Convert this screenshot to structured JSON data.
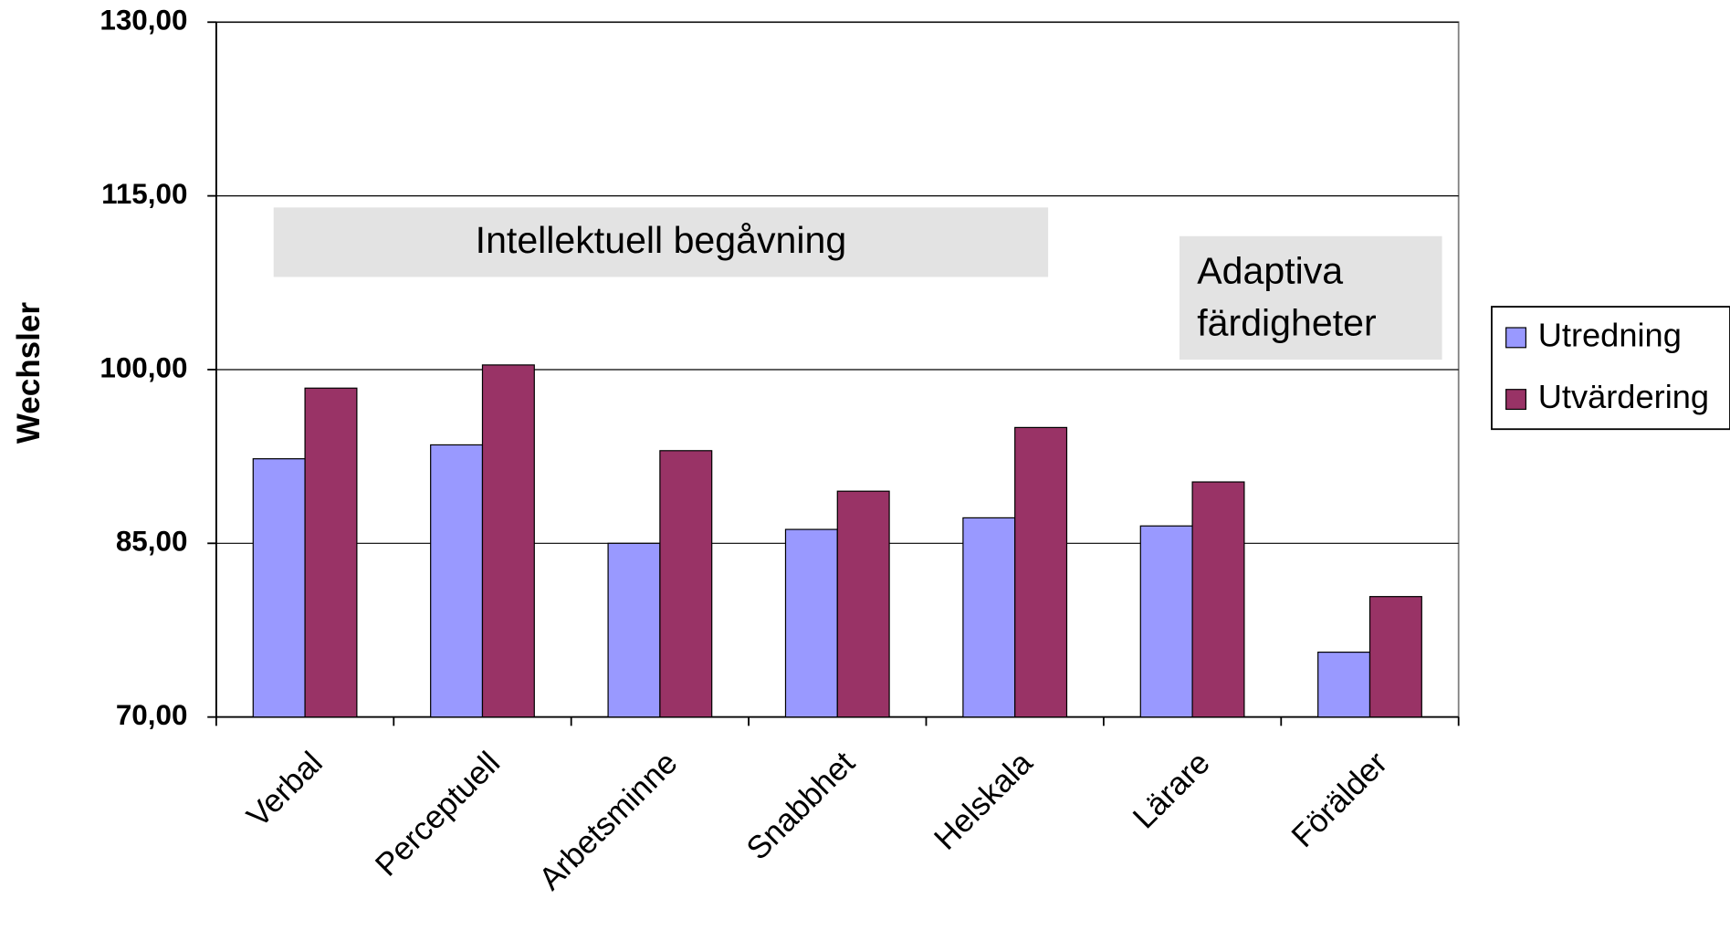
{
  "chart_data": {
    "type": "bar",
    "ylabel": "Wechsler",
    "categories": [
      "Verbal",
      "Perceptuell",
      "Arbetsminne",
      "Snabbhet",
      "Helskala",
      "Lärare",
      "Förälder"
    ],
    "series": [
      {
        "name": "Utredning",
        "color": "#9999ff",
        "values": [
          92.3,
          93.5,
          85.0,
          86.2,
          87.2,
          86.5,
          75.6
        ]
      },
      {
        "name": "Utvärdering",
        "color": "#993366",
        "values": [
          98.4,
          100.4,
          93.0,
          89.5,
          95.0,
          90.3,
          80.4
        ]
      }
    ],
    "ylim": [
      70,
      130
    ],
    "yticks": [
      {
        "value": 70,
        "label": "70,00"
      },
      {
        "value": 85,
        "label": "85,00"
      },
      {
        "value": 100,
        "label": "100,00"
      },
      {
        "value": 115,
        "label": "115,00"
      },
      {
        "value": 130,
        "label": "130,00"
      }
    ],
    "grid": true,
    "legend": "right",
    "annotations": [
      {
        "lines": [
          "Intellektuell begåvning"
        ]
      },
      {
        "lines": [
          "Adaptiva",
          "färdigheter"
        ]
      }
    ]
  }
}
